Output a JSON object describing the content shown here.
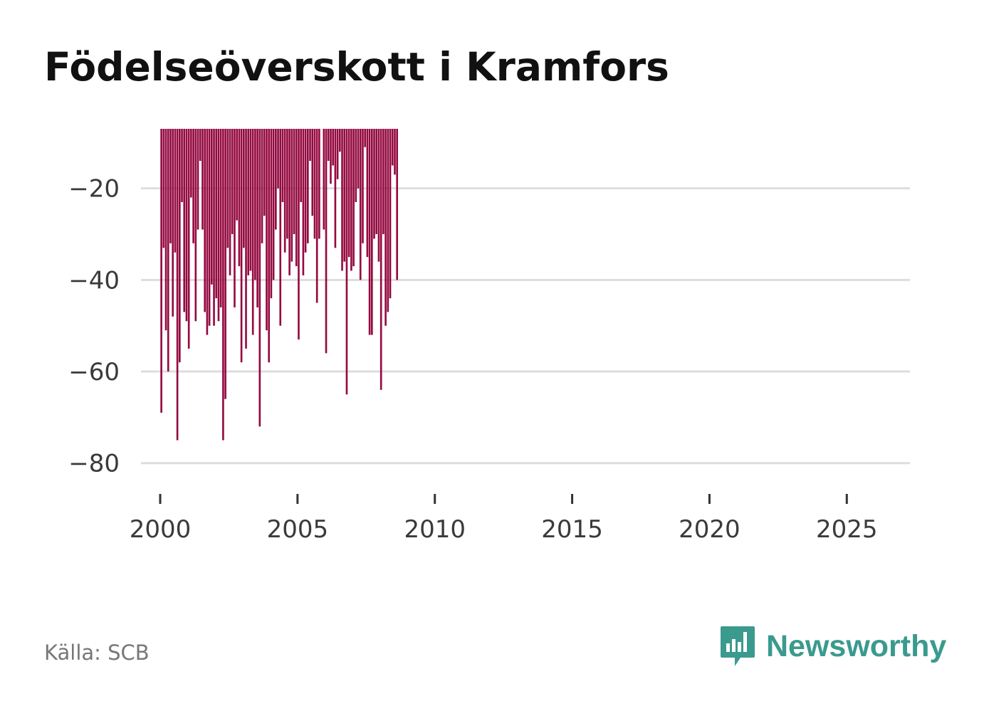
{
  "chart_data": {
    "type": "bar",
    "title": "Födelseöverskott i Kramfors",
    "xlabel": "",
    "ylabel": "",
    "color": "#940a40",
    "baseline": -7,
    "ylim": [
      -83,
      -7
    ],
    "xlim": [
      1999.3,
      2027.3
    ],
    "yticks": [
      -20,
      -40,
      -60,
      -80
    ],
    "ytick_labels": [
      "−20",
      "−40",
      "−60",
      "−80"
    ],
    "xticks": [
      2000,
      2005,
      2010,
      2015,
      2020,
      2025
    ],
    "xtick_labels": [
      "2000",
      "2005",
      "2010",
      "2015",
      "2020",
      "2025"
    ],
    "start_year": 2000,
    "start_month": 1,
    "values": [
      -69,
      -33,
      -51,
      -60,
      -32,
      -48,
      -34,
      -75,
      -58,
      -23,
      -47,
      -49,
      -55,
      -22,
      -32,
      -49,
      -29,
      -14,
      -29,
      -47,
      -52,
      -50,
      -41,
      -50,
      -44,
      -49,
      -46,
      -75,
      -66,
      -33,
      -39,
      -30,
      -46,
      -27,
      -37,
      -58,
      -33,
      -55,
      -39,
      -38,
      -52,
      -40,
      -46,
      -72,
      -32,
      -26,
      -51,
      -58,
      -44,
      -40,
      -29,
      -20,
      -50,
      -23,
      -34,
      -31,
      -39,
      -36,
      -30,
      -37,
      -53,
      -23,
      -39,
      -34,
      -32,
      -14,
      -26,
      -31,
      -45,
      -31,
      null,
      -29,
      -56,
      -14,
      -19,
      -15,
      -33,
      -18,
      -12,
      -38,
      -36,
      -65,
      -35,
      -38,
      -37,
      -23,
      -20,
      -40,
      -32,
      -11,
      -35,
      -52,
      -52,
      -31,
      -30,
      -36,
      -64,
      -30,
      -50,
      -47,
      -44,
      -15,
      -17,
      -40
    ]
  },
  "source": "Källa: SCB",
  "brand": {
    "name": "Newsworthy",
    "color": "#3a9a8e",
    "icon": "newsworthy-bar-chart-icon"
  }
}
